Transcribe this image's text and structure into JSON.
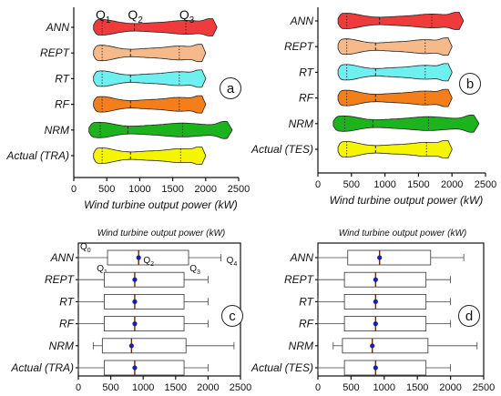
{
  "chart_data": [
    {
      "type": "violin",
      "panel_label": "a",
      "xlabel": "Wind turbine output power (kW)",
      "xlim": [
        0,
        2500
      ],
      "xticks": [
        0,
        500,
        1000,
        1500,
        2000,
        2500
      ],
      "quartile_labels": [
        "Q1",
        "Q2",
        "Q3"
      ],
      "series": [
        {
          "name": "ANN",
          "color": "#ef3b3b",
          "min": 300,
          "q1": 430,
          "median": 920,
          "q3": 1700,
          "max": 2170
        },
        {
          "name": "REPT",
          "color": "#f5b98a",
          "min": 300,
          "q1": 430,
          "median": 860,
          "q3": 1600,
          "max": 2000
        },
        {
          "name": "RT",
          "color": "#6ff0f0",
          "min": 300,
          "q1": 430,
          "median": 860,
          "q3": 1600,
          "max": 2000
        },
        {
          "name": "RF",
          "color": "#f47f1a",
          "min": 300,
          "q1": 430,
          "median": 860,
          "q3": 1600,
          "max": 2000
        },
        {
          "name": "NRM",
          "color": "#1db31d",
          "min": 230,
          "q1": 400,
          "median": 820,
          "q3": 1650,
          "max": 2400
        },
        {
          "name": "Actual (TRA)",
          "color": "#f5f500",
          "min": 300,
          "q1": 430,
          "median": 860,
          "q3": 1620,
          "max": 2000
        }
      ]
    },
    {
      "type": "violin",
      "panel_label": "b",
      "xlabel": "Wind turbine output power (kW)",
      "xlim": [
        0,
        2500
      ],
      "xticks": [
        0,
        500,
        1000,
        1500,
        2000,
        2500
      ],
      "series": [
        {
          "name": "ANN",
          "color": "#ef3b3b",
          "min": 300,
          "q1": 430,
          "median": 920,
          "q3": 1700,
          "max": 2170
        },
        {
          "name": "REPT",
          "color": "#f5b98a",
          "min": 300,
          "q1": 430,
          "median": 860,
          "q3": 1600,
          "max": 2000
        },
        {
          "name": "RT",
          "color": "#6ff0f0",
          "min": 300,
          "q1": 430,
          "median": 860,
          "q3": 1600,
          "max": 2000
        },
        {
          "name": "RF",
          "color": "#f47f1a",
          "min": 300,
          "q1": 430,
          "median": 860,
          "q3": 1600,
          "max": 2000
        },
        {
          "name": "NRM",
          "color": "#1db31d",
          "min": 230,
          "q1": 400,
          "median": 820,
          "q3": 1650,
          "max": 2400
        },
        {
          "name": "Actual (TES)",
          "color": "#f5f500",
          "min": 300,
          "q1": 430,
          "median": 860,
          "q3": 1620,
          "max": 2000
        }
      ]
    },
    {
      "type": "box",
      "panel_label": "c",
      "title": "Wind turbine output power (kW)",
      "xlim": [
        0,
        2500
      ],
      "xticks": [
        0,
        500,
        1000,
        1500,
        2000,
        2500
      ],
      "quartile_labels": [
        "Q0",
        "Q1",
        "Q2",
        "Q3",
        "Q4"
      ],
      "series": [
        {
          "name": "ANN",
          "min": 0,
          "q1": 450,
          "median": 930,
          "q3": 1700,
          "max": 2200,
          "mean": 930
        },
        {
          "name": "REPT",
          "min": 0,
          "q1": 400,
          "median": 870,
          "q3": 1630,
          "max": 2000,
          "mean": 870
        },
        {
          "name": "RT",
          "min": 0,
          "q1": 400,
          "median": 870,
          "q3": 1630,
          "max": 2000,
          "mean": 870
        },
        {
          "name": "RF",
          "min": 0,
          "q1": 400,
          "median": 870,
          "q3": 1630,
          "max": 2000,
          "mean": 870
        },
        {
          "name": "NRM",
          "min": 230,
          "q1": 370,
          "median": 820,
          "q3": 1660,
          "max": 2400,
          "mean": 820
        },
        {
          "name": "Actual (TRA)",
          "min": 0,
          "q1": 400,
          "median": 870,
          "q3": 1630,
          "max": 2000,
          "mean": 870
        }
      ]
    },
    {
      "type": "box",
      "panel_label": "d",
      "title": "Wind turbine output power (kW)",
      "xlim": [
        0,
        2500
      ],
      "xticks": [
        0,
        500,
        1000,
        1500,
        2000,
        2500
      ],
      "series": [
        {
          "name": "ANN",
          "min": 0,
          "q1": 450,
          "median": 930,
          "q3": 1700,
          "max": 2200,
          "mean": 930
        },
        {
          "name": "REPT",
          "min": 0,
          "q1": 400,
          "median": 870,
          "q3": 1630,
          "max": 2000,
          "mean": 870
        },
        {
          "name": "RT",
          "min": 0,
          "q1": 400,
          "median": 870,
          "q3": 1630,
          "max": 2000,
          "mean": 870
        },
        {
          "name": "RF",
          "min": 0,
          "q1": 400,
          "median": 870,
          "q3": 1630,
          "max": 2000,
          "mean": 870
        },
        {
          "name": "NRM",
          "min": 230,
          "q1": 370,
          "median": 820,
          "q3": 1660,
          "max": 2400,
          "mean": 820
        },
        {
          "name": "Actual (TES)",
          "min": 0,
          "q1": 400,
          "median": 870,
          "q3": 1630,
          "max": 2000,
          "mean": 870
        }
      ]
    }
  ]
}
